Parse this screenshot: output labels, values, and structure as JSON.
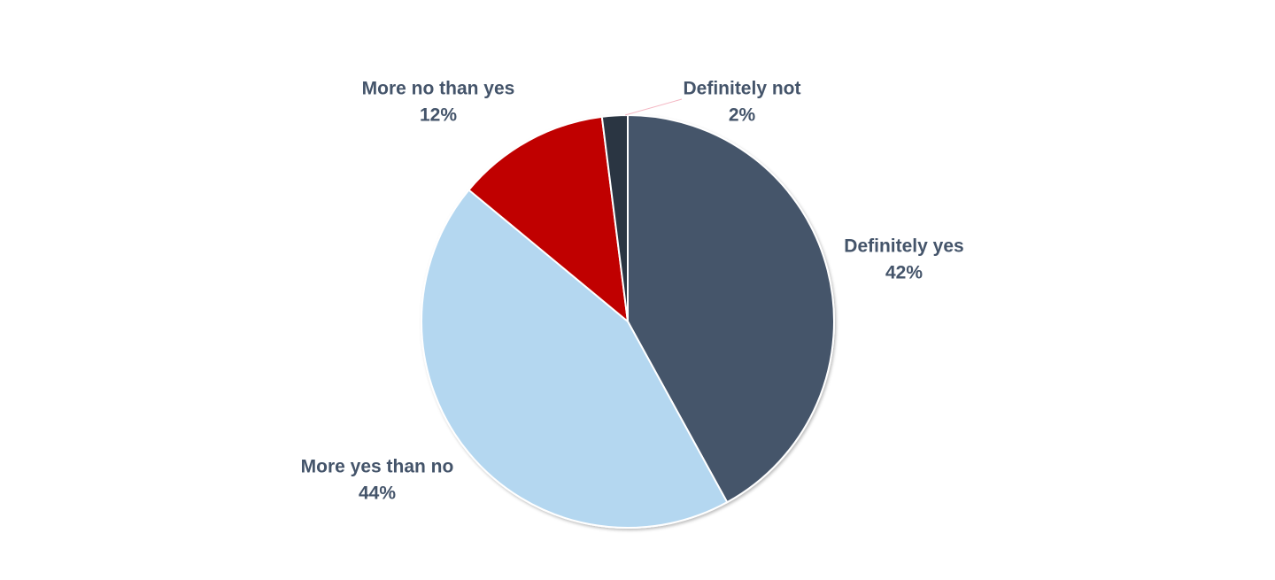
{
  "chart_data": {
    "type": "pie",
    "title": "",
    "slices": [
      {
        "label": "Definitely yes",
        "value": 42,
        "value_label": "42%",
        "color": "#44546a"
      },
      {
        "label": "More yes than no",
        "value": 44,
        "value_label": "44%",
        "color": "#b4d7f0"
      },
      {
        "label": "More no than yes",
        "value": 12,
        "value_label": "12%",
        "color": "#c00000"
      },
      {
        "label": "Definitely not",
        "value": 2,
        "value_label": "2%",
        "color": "#2a3442"
      }
    ],
    "start": "top",
    "direction": "clockwise",
    "legend": "none",
    "data_labels": "outside"
  }
}
